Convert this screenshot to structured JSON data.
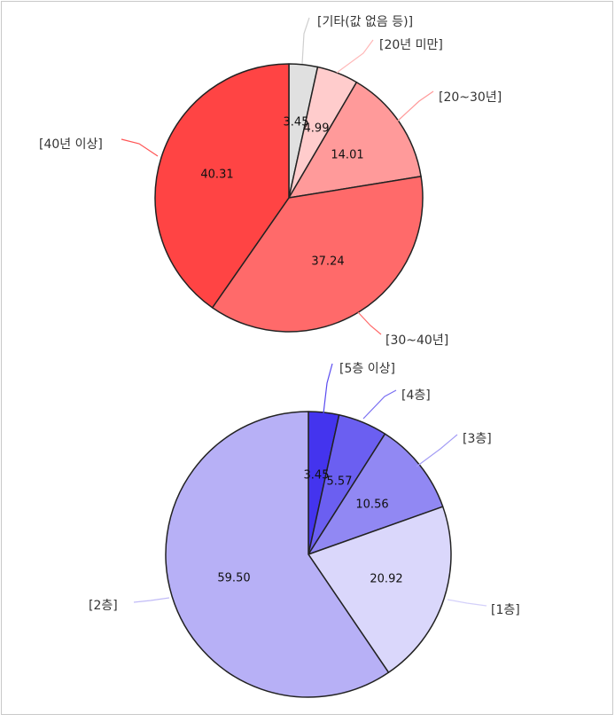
{
  "chart_data": [
    {
      "type": "pie",
      "series": [
        {
          "category": "[기타(값 없음 등)]",
          "value": 3.45,
          "color": "#e0e0e0",
          "leader": "#cfcfcf"
        },
        {
          "category": "[20년 미만]",
          "value": 4.99,
          "color": "#ffcccc",
          "leader": "#ffb8b8"
        },
        {
          "category": "[20~30년]",
          "value": 14.01,
          "color": "#ff9a9a",
          "leader": "#ff9a9a"
        },
        {
          "category": "[30~40년]",
          "value": 37.24,
          "color": "#ff6a6a",
          "leader": "#ff6a6a"
        },
        {
          "category": "[40년 이상]",
          "value": 40.31,
          "color": "#ff4444",
          "leader": "#ff5555"
        }
      ]
    },
    {
      "type": "pie",
      "series": [
        {
          "category": "[5층 이상]",
          "value": 3.45,
          "color": "#4434ee",
          "leader": "#5a4cf0"
        },
        {
          "category": "[4층]",
          "value": 5.57,
          "color": "#6b5ff1",
          "leader": "#7a6ff2"
        },
        {
          "category": "[3층]",
          "value": 10.56,
          "color": "#9188f3",
          "leader": "#a39cf5"
        },
        {
          "category": "[1층]",
          "value": 20.92,
          "color": "#dad7fb",
          "leader": "#d4d0fa"
        },
        {
          "category": "[2층]",
          "value": 59.5,
          "color": "#b7b0f6",
          "leader": "#c1bbf7"
        }
      ]
    }
  ]
}
